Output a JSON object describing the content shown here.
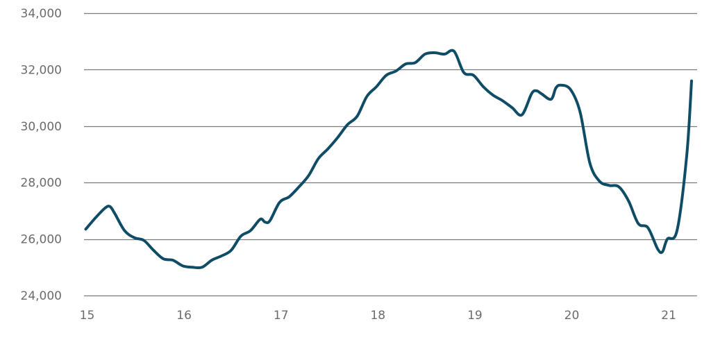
{
  "chart_data": {
    "type": "line",
    "title": "",
    "xlabel": "",
    "ylabel": "",
    "xlim": [
      15,
      21.25
    ],
    "ylim": [
      24000,
      34000
    ],
    "x_ticks": [
      15,
      16,
      17,
      18,
      19,
      20,
      21
    ],
    "x_tick_labels": [
      "15",
      "16",
      "17",
      "18",
      "19",
      "20",
      "21"
    ],
    "y_ticks": [
      24000,
      26000,
      28000,
      30000,
      32000,
      34000
    ],
    "y_tick_labels": [
      "24,000",
      "26,000",
      "28,000",
      "30,000",
      "32,000",
      "34,000"
    ],
    "grid": "horizontal",
    "colors": {
      "line": "#0f4c66",
      "grid": "#7a7a7a",
      "tick_label": "#6b6b6b"
    },
    "series": [
      {
        "x": [
          15.0,
          15.1,
          15.2,
          15.25,
          15.3,
          15.4,
          15.5,
          15.6,
          15.7,
          15.8,
          15.9,
          16.0,
          16.1,
          16.2,
          16.3,
          16.4,
          16.5,
          16.6,
          16.7,
          16.8,
          16.85,
          16.9,
          17.0,
          17.1,
          17.2,
          17.3,
          17.4,
          17.5,
          17.6,
          17.7,
          17.8,
          17.9,
          18.0,
          18.1,
          18.2,
          18.3,
          18.4,
          18.5,
          18.6,
          18.7,
          18.8,
          18.9,
          19.0,
          19.1,
          19.2,
          19.3,
          19.4,
          19.5,
          19.6,
          19.65,
          19.7,
          19.8,
          19.85,
          19.9,
          20.0,
          20.1,
          20.2,
          20.3,
          20.4,
          20.5,
          20.6,
          20.7,
          20.8,
          20.9,
          20.95,
          21.0,
          21.1,
          21.2,
          21.25
        ],
        "y": [
          26350,
          26750,
          27100,
          27150,
          26900,
          26300,
          26050,
          25950,
          25600,
          25300,
          25250,
          25050,
          25000,
          25000,
          25250,
          25400,
          25600,
          26100,
          26300,
          26700,
          26600,
          26650,
          27300,
          27500,
          27850,
          28250,
          28850,
          29200,
          29600,
          30050,
          30350,
          31050,
          31400,
          31800,
          31950,
          32200,
          32250,
          32550,
          32600,
          32550,
          32650,
          31900,
          31800,
          31400,
          31100,
          30900,
          30650,
          30400,
          31150,
          31250,
          31150,
          30950,
          31350,
          31450,
          31300,
          30500,
          28700,
          28050,
          27900,
          27850,
          27350,
          26550,
          26400,
          25650,
          25550,
          26000,
          26300,
          28950,
          31600
        ]
      }
    ]
  }
}
